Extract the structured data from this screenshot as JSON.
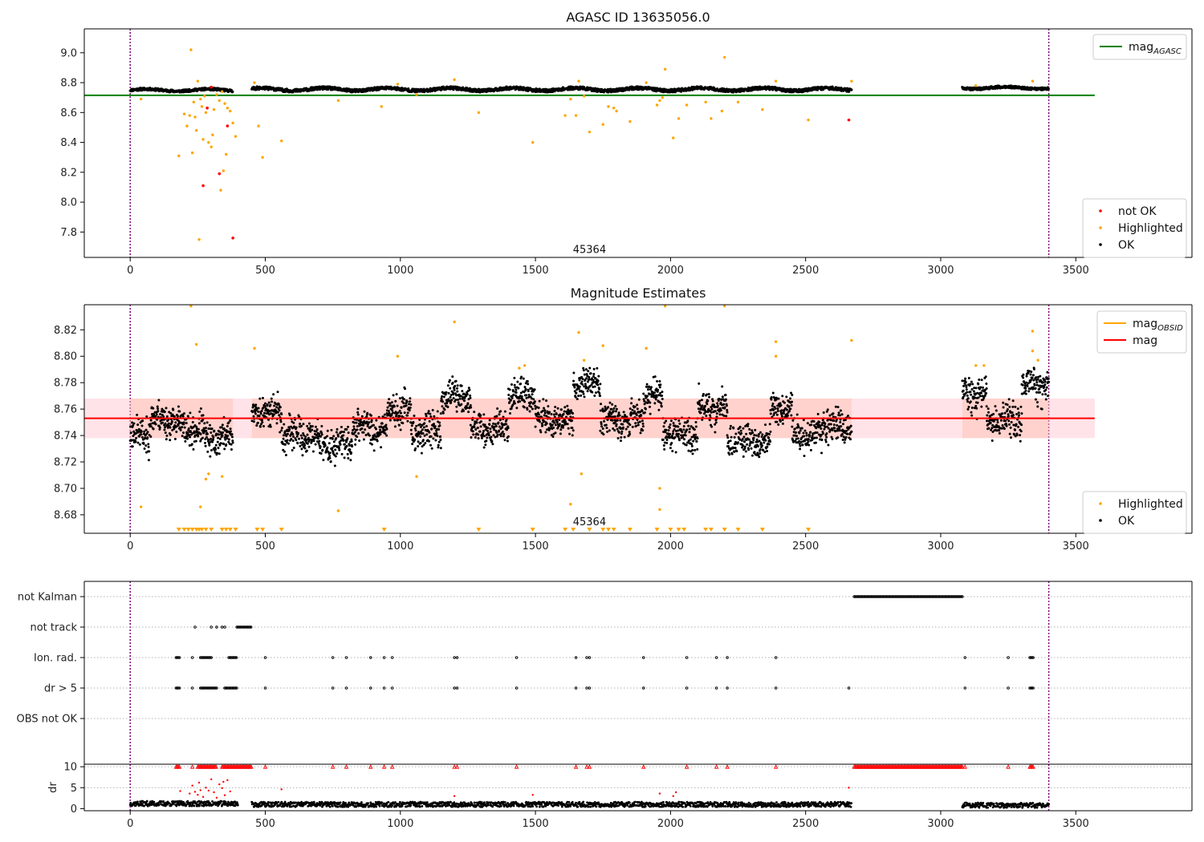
{
  "chart_data": [
    {
      "type": "scatter",
      "title": "AGASC ID 13635056.0",
      "xlim": [
        -170,
        3930
      ],
      "ylim": [
        7.63,
        9.16
      ],
      "xticks": [
        0,
        500,
        1000,
        1500,
        2000,
        2500,
        3000,
        3500
      ],
      "yticks": [
        7.8,
        8.0,
        8.2,
        8.4,
        8.6,
        8.8,
        9.0
      ],
      "ytick_labels": [
        "7.8",
        "8.0",
        "8.2",
        "8.4",
        "8.6",
        "8.8",
        "9.0"
      ],
      "annotation": {
        "text": "45364",
        "x": 1700,
        "y": 7.66
      },
      "vlines": [
        0,
        3400
      ],
      "reference_line": {
        "name": "mag",
        "subscript": "AGASC",
        "y": 8.715,
        "x_range": [
          -170,
          3570
        ],
        "color": "#008000"
      },
      "legend_top": {
        "placement": "upper-right",
        "entries": [
          {
            "label": "mag",
            "sub": "AGASC",
            "color": "#008000"
          }
        ]
      },
      "legend_bottom": {
        "placement": "lower-right",
        "entries": [
          {
            "label": "not OK",
            "color": "#ff0000"
          },
          {
            "label": "Highlighted",
            "color": "#ffa500"
          },
          {
            "label": "OK",
            "color": "#000000"
          }
        ]
      },
      "ok_segments": [
        {
          "x": [
            0,
            380
          ],
          "base": 8.75,
          "amp": 0.012
        },
        {
          "x": [
            450,
            2670
          ],
          "base": 8.755,
          "amp": 0.015
        },
        {
          "x": [
            3080,
            3400
          ],
          "base": 8.765,
          "amp": 0.012
        }
      ],
      "highlighted_points": [
        [
          40,
          8.69
        ],
        [
          180,
          8.31
        ],
        [
          200,
          8.59
        ],
        [
          210,
          8.51
        ],
        [
          220,
          8.58
        ],
        [
          225,
          9.02
        ],
        [
          230,
          8.33
        ],
        [
          235,
          8.67
        ],
        [
          240,
          8.57
        ],
        [
          245,
          8.48
        ],
        [
          250,
          8.81
        ],
        [
          255,
          7.75
        ],
        [
          260,
          8.69
        ],
        [
          265,
          8.64
        ],
        [
          270,
          8.42
        ],
        [
          275,
          8.71
        ],
        [
          280,
          8.6
        ],
        [
          290,
          8.4
        ],
        [
          300,
          8.37
        ],
        [
          305,
          8.45
        ],
        [
          310,
          8.62
        ],
        [
          320,
          8.72
        ],
        [
          330,
          8.68
        ],
        [
          335,
          8.08
        ],
        [
          340,
          8.74
        ],
        [
          345,
          8.21
        ],
        [
          350,
          8.66
        ],
        [
          355,
          8.32
        ],
        [
          360,
          8.63
        ],
        [
          370,
          8.61
        ],
        [
          380,
          8.53
        ],
        [
          390,
          8.44
        ],
        [
          460,
          8.8
        ],
        [
          475,
          8.51
        ],
        [
          490,
          8.3
        ],
        [
          560,
          8.41
        ],
        [
          770,
          8.68
        ],
        [
          930,
          8.64
        ],
        [
          990,
          8.79
        ],
        [
          1060,
          8.72
        ],
        [
          1200,
          8.82
        ],
        [
          1290,
          8.6
        ],
        [
          1490,
          8.4
        ],
        [
          1610,
          8.58
        ],
        [
          1630,
          8.69
        ],
        [
          1650,
          8.58
        ],
        [
          1660,
          8.81
        ],
        [
          1680,
          8.71
        ],
        [
          1700,
          8.47
        ],
        [
          1750,
          8.52
        ],
        [
          1770,
          8.64
        ],
        [
          1790,
          8.63
        ],
        [
          1800,
          8.61
        ],
        [
          1850,
          8.54
        ],
        [
          1910,
          8.8
        ],
        [
          1950,
          8.65
        ],
        [
          1960,
          8.68
        ],
        [
          1970,
          8.7
        ],
        [
          1980,
          8.89
        ],
        [
          2010,
          8.43
        ],
        [
          2030,
          8.56
        ],
        [
          2060,
          8.65
        ],
        [
          2130,
          8.67
        ],
        [
          2150,
          8.56
        ],
        [
          2190,
          8.61
        ],
        [
          2200,
          8.97
        ],
        [
          2250,
          8.67
        ],
        [
          2340,
          8.62
        ],
        [
          2390,
          8.81
        ],
        [
          2510,
          8.55
        ],
        [
          2670,
          8.81
        ],
        [
          3130,
          8.78
        ],
        [
          3340,
          8.81
        ]
      ],
      "not_ok_points": [
        [
          270,
          8.11
        ],
        [
          285,
          8.63
        ],
        [
          300,
          8.77
        ],
        [
          330,
          8.19
        ],
        [
          360,
          8.51
        ],
        [
          380,
          7.76
        ],
        [
          2660,
          8.55
        ]
      ]
    },
    {
      "type": "scatter",
      "title": "Magnitude Estimates",
      "xlim": [
        -170,
        3930
      ],
      "ylim": [
        8.666,
        8.839
      ],
      "xticks": [
        0,
        500,
        1000,
        1500,
        2000,
        2500,
        3000,
        3500
      ],
      "yticks": [
        8.68,
        8.7,
        8.72,
        8.74,
        8.76,
        8.78,
        8.8,
        8.82
      ],
      "ytick_labels": [
        "8.68",
        "8.70",
        "8.72",
        "8.74",
        "8.76",
        "8.78",
        "8.80",
        "8.82"
      ],
      "annotation": {
        "text": "45364",
        "x": 1700,
        "y": 8.672
      },
      "vlines": [
        0,
        3400
      ],
      "mag_line": {
        "y": 8.753,
        "x_range": [
          -170,
          3570
        ],
        "color": "#ff0000"
      },
      "mag_band": {
        "y_range": [
          8.738,
          8.768
        ],
        "x_range": [
          -170,
          3570
        ],
        "color": "#ffc0cb"
      },
      "legend_top": {
        "placement": "upper-right",
        "entries": [
          {
            "label": "mag",
            "sub": "OBSID",
            "color": "#ffa500"
          },
          {
            "label": "mag",
            "sub": "",
            "color": "#ff0000"
          }
        ]
      },
      "legend_bottom": {
        "placement": "lower-right",
        "entries": [
          {
            "label": "Highlighted",
            "color": "#ffa500"
          },
          {
            "label": "OK",
            "color": "#000000"
          }
        ]
      },
      "obsid_segments": [
        [
          0,
          70,
          8.74
        ],
        [
          70,
          180,
          8.752
        ],
        [
          180,
          270,
          8.745
        ],
        [
          270,
          380,
          8.738
        ],
        [
          450,
          560,
          8.758
        ],
        [
          560,
          700,
          8.74
        ],
        [
          700,
          820,
          8.733
        ],
        [
          820,
          950,
          8.746
        ],
        [
          950,
          1040,
          8.76
        ],
        [
          1040,
          1150,
          8.743
        ],
        [
          1150,
          1260,
          8.768
        ],
        [
          1260,
          1400,
          8.746
        ],
        [
          1400,
          1500,
          8.77
        ],
        [
          1500,
          1640,
          8.752
        ],
        [
          1640,
          1740,
          8.779
        ],
        [
          1740,
          1900,
          8.753
        ],
        [
          1900,
          1970,
          8.77
        ],
        [
          1970,
          2100,
          8.742
        ],
        [
          2100,
          2210,
          8.76
        ],
        [
          2210,
          2370,
          8.736
        ],
        [
          2370,
          2450,
          8.762
        ],
        [
          2450,
          2560,
          8.742
        ],
        [
          2560,
          2670,
          8.748
        ],
        [
          3080,
          3170,
          8.77
        ],
        [
          3170,
          3300,
          8.752
        ],
        [
          3300,
          3400,
          8.779
        ]
      ],
      "highlighted_points": [
        [
          40,
          8.686
        ],
        [
          225,
          8.838
        ],
        [
          245,
          8.809
        ],
        [
          260,
          8.686
        ],
        [
          280,
          8.707
        ],
        [
          290,
          8.711
        ],
        [
          340,
          8.709
        ],
        [
          460,
          8.806
        ],
        [
          770,
          8.683
        ],
        [
          990,
          8.8
        ],
        [
          1060,
          8.709
        ],
        [
          1200,
          8.826
        ],
        [
          1440,
          8.791
        ],
        [
          1460,
          8.793
        ],
        [
          1630,
          8.688
        ],
        [
          1660,
          8.818
        ],
        [
          1670,
          8.711
        ],
        [
          1680,
          8.797
        ],
        [
          1750,
          8.808
        ],
        [
          1910,
          8.806
        ],
        [
          1960,
          8.7
        ],
        [
          1960,
          8.684
        ],
        [
          1980,
          8.838
        ],
        [
          2200,
          8.838
        ],
        [
          2390,
          8.811
        ],
        [
          2390,
          8.8
        ],
        [
          2670,
          8.812
        ],
        [
          3130,
          8.793
        ],
        [
          3160,
          8.793
        ],
        [
          3340,
          8.819
        ],
        [
          3340,
          8.804
        ],
        [
          3360,
          8.797
        ]
      ],
      "below_range_x": [
        180,
        200,
        215,
        230,
        245,
        255,
        265,
        280,
        300,
        340,
        355,
        370,
        390,
        470,
        490,
        560,
        940,
        1290,
        1490,
        1610,
        1640,
        1700,
        1750,
        1770,
        1790,
        1850,
        1950,
        2000,
        2030,
        2050,
        2130,
        2150,
        2200,
        2250,
        2340,
        2510
      ]
    },
    {
      "type": "scatter",
      "title": "",
      "xlim": [
        -170,
        3930
      ],
      "ylim": [
        -0.5,
        5.5
      ],
      "xticks": [],
      "yticks": [
        1,
        2,
        3,
        4,
        5
      ],
      "ytick_labels": [
        "OBS not OK",
        "dr > 5",
        "Ion. rad.",
        "not track",
        "not Kalman"
      ],
      "vlines": [
        0,
        3400
      ],
      "flag_points": {
        "not Kalman": [
          [
            2680,
            3080
          ]
        ],
        "not track": [
          240,
          300,
          320,
          340,
          350,
          [
            395,
            450
          ]
        ],
        "Ion. rad.": [
          [
            170,
            185
          ],
          230,
          [
            260,
            300
          ],
          [
            365,
            395
          ],
          500,
          750,
          800,
          890,
          940,
          970,
          1200,
          1210,
          1430,
          1650,
          1690,
          1700,
          1900,
          2060,
          2170,
          2210,
          2390,
          3090,
          3250,
          [
            3330,
            3345
          ]
        ],
        "dr > 5": [
          [
            170,
            185
          ],
          230,
          [
            260,
            320
          ],
          [
            350,
            395
          ],
          500,
          750,
          800,
          890,
          940,
          970,
          1200,
          1210,
          1430,
          1650,
          1690,
          1700,
          1900,
          2060,
          2170,
          2210,
          2390,
          2660,
          3090,
          3250,
          [
            3330,
            3345
          ]
        ],
        "OBS not OK": []
      }
    },
    {
      "type": "scatter",
      "title": "",
      "xlim": [
        -170,
        3930
      ],
      "ylim": [
        -0.5,
        10.6
      ],
      "xticks": [
        0,
        500,
        1000,
        1500,
        2000,
        2500,
        3000,
        3500
      ],
      "yticks": [
        0,
        5,
        10
      ],
      "ytick_labels": [
        "0",
        "5",
        "10"
      ],
      "ylabel": "dr",
      "vlines": [
        0,
        3400
      ],
      "dr_segments": [
        [
          0,
          400,
          1.2
        ],
        [
          450,
          2670,
          1.0
        ],
        [
          3080,
          3400,
          0.8
        ]
      ],
      "capped_x": [
        [
          170,
          185
        ],
        230,
        [
          250,
          320
        ],
        [
          340,
          450
        ],
        500,
        750,
        800,
        890,
        940,
        970,
        1200,
        1210,
        1430,
        1650,
        1690,
        1700,
        1900,
        2060,
        2170,
        2210,
        2390,
        [
          2680,
          3080
        ],
        3090,
        3250,
        [
          3330,
          3345
        ]
      ],
      "red_points": [
        [
          185,
          4.2
        ],
        [
          220,
          3.6
        ],
        [
          230,
          5.5
        ],
        [
          240,
          4.0
        ],
        [
          250,
          3.3
        ],
        [
          255,
          6.2
        ],
        [
          260,
          4.4
        ],
        [
          270,
          2.8
        ],
        [
          280,
          5.0
        ],
        [
          290,
          4.3
        ],
        [
          300,
          7.0
        ],
        [
          310,
          3.9
        ],
        [
          320,
          2.6
        ],
        [
          330,
          5.8
        ],
        [
          340,
          4.9
        ],
        [
          345,
          6.4
        ],
        [
          350,
          3.2
        ],
        [
          360,
          6.8
        ],
        [
          370,
          4.1
        ],
        [
          560,
          4.6
        ],
        [
          1200,
          3.0
        ],
        [
          1490,
          3.3
        ],
        [
          1960,
          3.6
        ],
        [
          2010,
          3.0
        ],
        [
          2020,
          3.9
        ],
        [
          2660,
          5.0
        ]
      ]
    }
  ]
}
